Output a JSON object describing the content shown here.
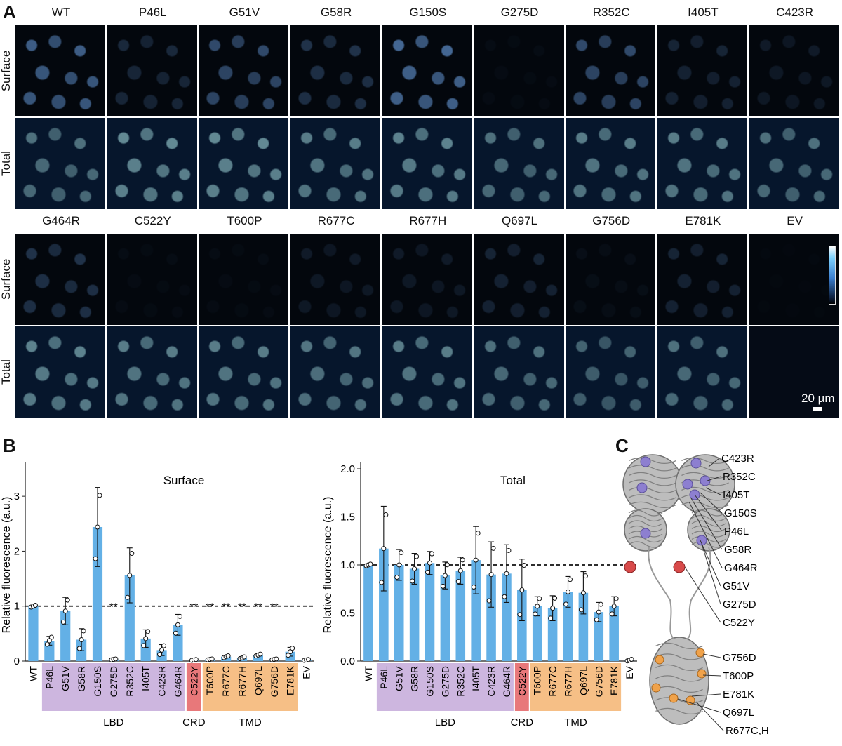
{
  "panel_a": {
    "letter": "A",
    "row_top_columns": [
      "WT",
      "P46L",
      "G51V",
      "G58R",
      "G150S",
      "G275D",
      "R352C",
      "I405T",
      "C423R"
    ],
    "row_bottom_columns": [
      "G464R",
      "C522Y",
      "T600P",
      "R677C",
      "R677H",
      "Q697L",
      "G756D",
      "E781K",
      "EV"
    ],
    "row_labels": [
      "Surface",
      "Total"
    ],
    "scale_bar": "20 µm"
  },
  "panel_b": {
    "letter": "B",
    "ylabel": "Relative fluorescence (a.u.)",
    "domain_labels": [
      "LBD",
      "CRD",
      "TMD"
    ],
    "significance": "**"
  },
  "panel_c": {
    "letter": "C",
    "labels": [
      "C423R",
      "R352C",
      "I405T",
      "G150S",
      "P46L",
      "G58R",
      "G464R",
      "G51V",
      "G275D",
      "C522Y",
      "G756D",
      "T600P",
      "E781K",
      "Q697L",
      "R677C,H"
    ]
  },
  "colors": {
    "bar": "#63b0e6",
    "lbd": "#cdb6df",
    "crd": "#e8787a",
    "tmd": "#f6bf86"
  },
  "chart_data": [
    {
      "type": "bar",
      "title": "Surface",
      "categories": [
        "WT",
        "P46L",
        "G51V",
        "G58R",
        "G150S",
        "G275D",
        "R352C",
        "I405T",
        "C423R",
        "G464R",
        "C522Y",
        "T600P",
        "R677C",
        "R677H",
        "Q697L",
        "G756D",
        "E781K",
        "EV"
      ],
      "values": [
        1.0,
        0.37,
        0.91,
        0.39,
        2.44,
        0.03,
        1.56,
        0.41,
        0.2,
        0.66,
        0.02,
        0.03,
        0.08,
        0.06,
        0.11,
        0.03,
        0.17,
        0.02
      ],
      "error": [
        0.02,
        0.08,
        0.25,
        0.2,
        0.72,
        0.01,
        0.5,
        0.16,
        0.1,
        0.19,
        0.01,
        0.01,
        0.02,
        0.02,
        0.02,
        0.01,
        0.08,
        0.01
      ],
      "ylabel": "Relative fluorescence (a.u.)",
      "ylim": [
        0,
        3.5
      ],
      "yticks": [
        0,
        1,
        2,
        3
      ],
      "reference_line": 1.0,
      "significant": [
        "G275D",
        "C522Y",
        "T600P",
        "R677C",
        "R677H",
        "Q697L",
        "G756D"
      ]
    },
    {
      "type": "bar",
      "title": "Total",
      "categories": [
        "WT",
        "P46L",
        "G51V",
        "G58R",
        "G150S",
        "G275D",
        "R352C",
        "I405T",
        "C423R",
        "G464R",
        "C522Y",
        "T600P",
        "R677C",
        "R677H",
        "Q697L",
        "G756D",
        "E781K",
        "EV"
      ],
      "values": [
        1.0,
        1.17,
        1.0,
        0.96,
        1.02,
        0.89,
        0.94,
        1.05,
        0.9,
        0.91,
        0.74,
        0.57,
        0.55,
        0.72,
        0.71,
        0.51,
        0.57,
        0.01
      ],
      "error": [
        0.01,
        0.44,
        0.16,
        0.16,
        0.12,
        0.14,
        0.14,
        0.35,
        0.34,
        0.3,
        0.32,
        0.1,
        0.13,
        0.16,
        0.22,
        0.1,
        0.1,
        0.01
      ],
      "ylabel": "Relative fluorescence (a.u.)",
      "ylim": [
        0,
        2.0
      ],
      "yticks": [
        "0.0",
        "0.5",
        "1.0",
        "1.5",
        "2.0"
      ],
      "reference_line": 1.0
    }
  ]
}
